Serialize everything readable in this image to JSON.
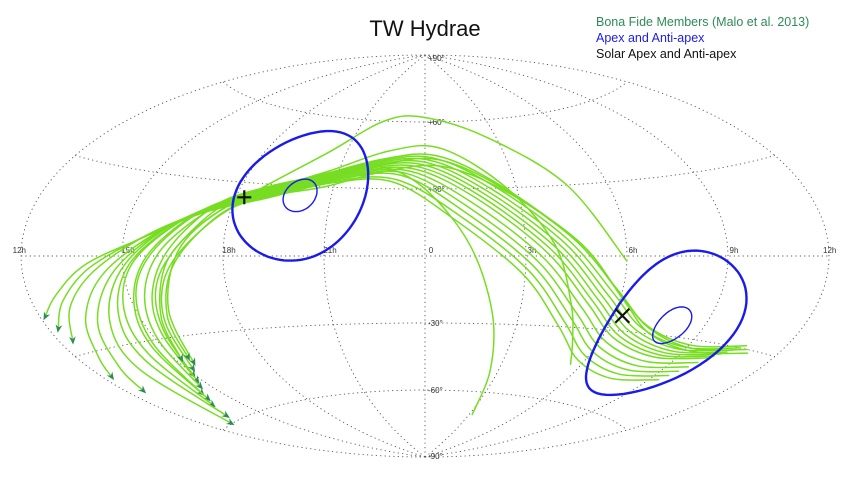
{
  "chart_data": {
    "type": "line",
    "projection": "aitoff",
    "title": "TW Hydrae",
    "legend_position": "top-right",
    "legend": [
      {
        "label": "Bona Fide Members (Malo et al. 2013)",
        "color": "#2e8b57"
      },
      {
        "label": "Apex and Anti-apex",
        "color": "#1a1aee"
      },
      {
        "label": "Solar Apex and Anti-apex",
        "color": "#111111"
      }
    ],
    "grid": true,
    "x_ticks": [
      {
        "lon": 180,
        "label": "12h"
      },
      {
        "lon": 135,
        "label": "9h"
      },
      {
        "lon": 90,
        "label": "6h"
      },
      {
        "lon": 45,
        "label": "3h"
      },
      {
        "lon": 0,
        "label": "0"
      },
      {
        "lon": -45,
        "label": "21h"
      },
      {
        "lon": -90,
        "label": "18h"
      },
      {
        "lon": -135,
        "label": "15h"
      },
      {
        "lon": -180,
        "label": "12h"
      }
    ],
    "y_ticks": [
      {
        "lat": 90,
        "label": "+90°"
      },
      {
        "lat": 60,
        "label": "+60°"
      },
      {
        "lat": 30,
        "label": "+30°"
      },
      {
        "lat": -30,
        "label": "-30°"
      },
      {
        "lat": -60,
        "label": "-60°"
      },
      {
        "lat": -90,
        "label": "-90°"
      }
    ],
    "colors": {
      "tracks": "#77dd22",
      "arrows": "#2e8b57",
      "apex_circles": "#1a1aee",
      "solar_markers": "#111111",
      "grid": "#555555"
    },
    "apex": {
      "lon": -60,
      "lat": 26,
      "radii_deg": [
        28,
        7
      ]
    },
    "anti_apex": {
      "lon": 120,
      "lat": -26,
      "radii_deg": [
        28,
        7
      ]
    },
    "solar_apex": {
      "lon": -86,
      "lat": 24,
      "marker": "+"
    },
    "solar_anti_apex": {
      "lon": 94,
      "lat": -24,
      "marker": "x"
    },
    "series": [
      {
        "points": [
          [
            166,
            -31
          ],
          [
            140,
            -34
          ],
          [
            112,
            -30
          ],
          [
            92,
            -18
          ],
          [
            70,
            5
          ],
          [
            40,
            28
          ],
          [
            10,
            40
          ],
          [
            -20,
            38
          ],
          [
            -50,
            30
          ],
          [
            -75,
            25
          ],
          [
            -92,
            18
          ],
          [
            -108,
            3
          ],
          [
            -118,
            -10
          ],
          [
            -125,
            -25
          ],
          [
            -132,
            -42
          ]
        ]
      },
      {
        "points": [
          [
            164,
            -30
          ],
          [
            138,
            -33
          ],
          [
            110,
            -28
          ],
          [
            90,
            -16
          ],
          [
            68,
            6
          ],
          [
            38,
            30
          ],
          [
            8,
            43
          ],
          [
            -22,
            41
          ],
          [
            -52,
            33
          ],
          [
            -78,
            27
          ],
          [
            -96,
            19
          ],
          [
            -112,
            2
          ],
          [
            -122,
            -12
          ],
          [
            -128,
            -27
          ],
          [
            -136,
            -44
          ]
        ]
      },
      {
        "points": [
          [
            162,
            -29
          ],
          [
            136,
            -32
          ],
          [
            108,
            -27
          ],
          [
            88,
            -14
          ],
          [
            66,
            8
          ],
          [
            36,
            32
          ],
          [
            6,
            45
          ],
          [
            -24,
            43
          ],
          [
            -54,
            35
          ],
          [
            -80,
            28
          ],
          [
            -98,
            20
          ],
          [
            -114,
            3
          ],
          [
            -124,
            -13
          ],
          [
            -130,
            -28
          ],
          [
            -138,
            -46
          ]
        ]
      },
      {
        "points": [
          [
            160,
            -30
          ],
          [
            134,
            -33
          ],
          [
            106,
            -28
          ],
          [
            86,
            -15
          ],
          [
            64,
            7
          ],
          [
            34,
            31
          ],
          [
            4,
            44
          ],
          [
            -26,
            42
          ],
          [
            -56,
            34
          ],
          [
            -82,
            27
          ],
          [
            -100,
            18
          ],
          [
            -118,
            2
          ],
          [
            -128,
            -14
          ],
          [
            -134,
            -30
          ],
          [
            -141,
            -48
          ]
        ]
      },
      {
        "points": [
          [
            158,
            -31
          ],
          [
            132,
            -34
          ],
          [
            104,
            -29
          ],
          [
            84,
            -16
          ],
          [
            62,
            6
          ],
          [
            32,
            30
          ],
          [
            2,
            43
          ],
          [
            -28,
            41
          ],
          [
            -58,
            33
          ],
          [
            -84,
            26
          ],
          [
            -104,
            17
          ],
          [
            -122,
            1
          ],
          [
            -132,
            -14
          ],
          [
            -138,
            -31
          ],
          [
            -146,
            -50
          ]
        ]
      },
      {
        "points": [
          [
            156,
            -32
          ],
          [
            130,
            -35
          ],
          [
            102,
            -30
          ],
          [
            82,
            -17
          ],
          [
            60,
            5
          ],
          [
            30,
            29
          ],
          [
            0,
            42
          ],
          [
            -30,
            40
          ],
          [
            -60,
            32
          ],
          [
            -86,
            25
          ],
          [
            -106,
            16
          ],
          [
            -124,
            0
          ],
          [
            -134,
            -16
          ],
          [
            -140,
            -32
          ],
          [
            -148,
            -52
          ]
        ]
      },
      {
        "points": [
          [
            154,
            -33
          ],
          [
            128,
            -36
          ],
          [
            100,
            -31
          ],
          [
            80,
            -18
          ],
          [
            58,
            4
          ],
          [
            28,
            28
          ],
          [
            -2,
            41
          ],
          [
            -32,
            39
          ],
          [
            -62,
            31
          ],
          [
            -88,
            24
          ],
          [
            -110,
            14
          ],
          [
            -130,
            -2
          ],
          [
            -140,
            -18
          ],
          [
            -145,
            -34
          ],
          [
            -152,
            -54
          ]
        ]
      },
      {
        "points": [
          [
            152,
            -34
          ],
          [
            126,
            -37
          ],
          [
            98,
            -32
          ],
          [
            78,
            -19
          ],
          [
            56,
            3
          ],
          [
            26,
            27
          ],
          [
            -4,
            40
          ],
          [
            -34,
            38
          ],
          [
            -64,
            30
          ],
          [
            -90,
            23
          ],
          [
            -112,
            13
          ],
          [
            -132,
            -3
          ],
          [
            -144,
            -20
          ],
          [
            -150,
            -36
          ],
          [
            -158,
            -58
          ]
        ]
      },
      {
        "points": [
          [
            150,
            -35
          ],
          [
            124,
            -38
          ],
          [
            96,
            -33
          ],
          [
            76,
            -20
          ],
          [
            54,
            2
          ],
          [
            24,
            26
          ],
          [
            -6,
            39
          ],
          [
            -36,
            37
          ],
          [
            -66,
            29
          ],
          [
            -92,
            22
          ],
          [
            -116,
            11
          ],
          [
            -136,
            -5
          ],
          [
            -150,
            -22
          ],
          [
            -158,
            -38
          ],
          [
            -166,
            -60
          ]
        ]
      },
      {
        "points": [
          [
            148,
            -37
          ],
          [
            122,
            -40
          ],
          [
            94,
            -35
          ],
          [
            74,
            -22
          ],
          [
            52,
            0
          ],
          [
            22,
            24
          ],
          [
            -8,
            38
          ],
          [
            -38,
            36
          ],
          [
            -68,
            28
          ],
          [
            -94,
            21
          ],
          [
            -118,
            10
          ],
          [
            -140,
            -6
          ],
          [
            -156,
            -22
          ],
          [
            -166,
            -36
          ],
          [
            -172,
            -44
          ]
        ]
      },
      {
        "points": [
          [
            146,
            -39
          ],
          [
            120,
            -42
          ],
          [
            92,
            -37
          ],
          [
            72,
            -24
          ],
          [
            50,
            -2
          ],
          [
            20,
            22
          ],
          [
            -10,
            37
          ],
          [
            -40,
            35
          ],
          [
            -70,
            27
          ],
          [
            -96,
            20
          ],
          [
            -120,
            9
          ],
          [
            -144,
            -6
          ],
          [
            -160,
            -20
          ],
          [
            -170,
            -32
          ],
          [
            -176,
            -38
          ]
        ]
      },
      {
        "points": [
          [
            144,
            -41
          ],
          [
            118,
            -44
          ],
          [
            90,
            -39
          ],
          [
            70,
            -26
          ],
          [
            48,
            -4
          ],
          [
            18,
            20
          ],
          [
            -12,
            36
          ],
          [
            -42,
            34
          ],
          [
            -72,
            26
          ],
          [
            -98,
            19
          ],
          [
            -124,
            8
          ],
          [
            -148,
            -5
          ],
          [
            -164,
            -16
          ],
          [
            -174,
            -26
          ]
        ]
      },
      {
        "points": [
          [
            142,
            -43
          ],
          [
            116,
            -46
          ],
          [
            88,
            -41
          ],
          [
            68,
            -28
          ],
          [
            46,
            -6
          ],
          [
            16,
            18
          ],
          [
            -14,
            34
          ],
          [
            -44,
            33
          ],
          [
            -74,
            25
          ],
          [
            -100,
            18
          ],
          [
            -126,
            7
          ],
          [
            -150,
            -4
          ],
          [
            -166,
            -14
          ],
          [
            -176,
            -22
          ]
        ]
      },
      {
        "points": [
          [
            140,
            -45
          ],
          [
            114,
            -48
          ],
          [
            86,
            -43
          ],
          [
            66,
            -30
          ],
          [
            44,
            -8
          ],
          [
            14,
            16
          ],
          [
            -16,
            33
          ],
          [
            -46,
            32
          ],
          [
            -76,
            24
          ],
          [
            -102,
            17
          ],
          [
            -128,
            6
          ],
          [
            -152,
            -3
          ],
          [
            -168,
            -12
          ],
          [
            -178,
            -18
          ]
        ]
      },
      {
        "points": [
          [
            84,
            -45
          ],
          [
            76,
            -35
          ],
          [
            68,
            -20
          ],
          [
            58,
            5
          ],
          [
            40,
            30
          ],
          [
            10,
            48
          ],
          [
            -20,
            47
          ],
          [
            -50,
            37
          ],
          [
            -75,
            28
          ],
          [
            -95,
            18
          ],
          [
            -110,
            2
          ],
          [
            -120,
            -20
          ],
          [
            -128,
            -40
          ]
        ]
      },
      {
        "points": [
          [
            90,
            -2
          ],
          [
            70,
            30
          ],
          [
            40,
            52
          ],
          [
            0,
            62
          ],
          [
            -30,
            60
          ],
          [
            -55,
            45
          ],
          [
            -80,
            28
          ],
          [
            -100,
            14
          ],
          [
            -115,
            -2
          ],
          [
            -125,
            -22
          ],
          [
            -132,
            -38
          ]
        ]
      },
      {
        "points": [
          [
            48,
            -70
          ],
          [
            40,
            -50
          ],
          [
            32,
            -25
          ],
          [
            20,
            5
          ],
          [
            0,
            30
          ],
          [
            -25,
            40
          ],
          [
            -50,
            35
          ],
          [
            -75,
            27
          ],
          [
            -95,
            16
          ],
          [
            -112,
            -3
          ],
          [
            -122,
            -22
          ],
          [
            -128,
            -38
          ]
        ]
      }
    ]
  }
}
